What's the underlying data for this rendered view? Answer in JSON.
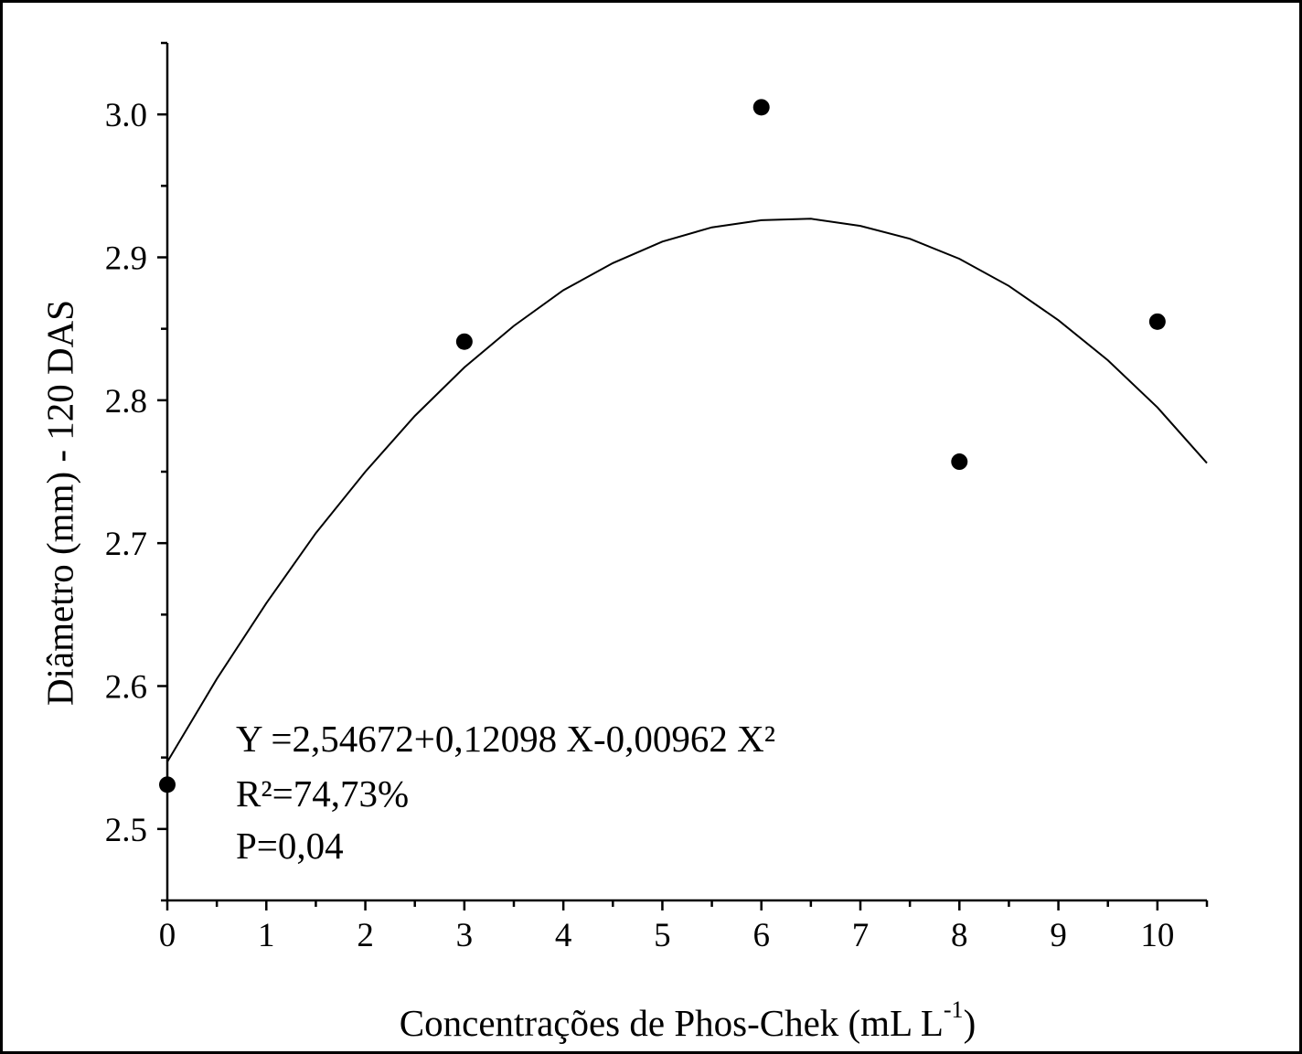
{
  "chart_data": {
    "type": "scatter",
    "y_label": "Diâmetro (mm) - 120 DAS",
    "x_label": {
      "text": "Concentrações de Phos-Chek (mL L",
      "superscript": "-1",
      "close": ")"
    },
    "annotations": [
      "Y =2,54672+0,12098 X-0,00962 X²",
      "R²=74,73%",
      "P=0,04"
    ],
    "xlim": [
      0,
      10.5
    ],
    "ylim": [
      2.45,
      3.05
    ],
    "xticks": [
      0,
      1,
      2,
      3,
      4,
      5,
      6,
      7,
      8,
      9,
      10
    ],
    "xminorticks": [
      0.5,
      1.5,
      2.5,
      3.5,
      4.5,
      5.5,
      6.5,
      7.5,
      8.5,
      9.5,
      10.5
    ],
    "yticks": [
      2.5,
      2.6,
      2.7,
      2.8,
      2.9,
      {
        "value": 3.0,
        "label": "3.0"
      }
    ],
    "yminorticks": [
      2.45,
      2.55,
      2.65,
      2.75,
      2.85,
      2.95,
      3.05
    ],
    "series": [
      {
        "type": "scatter",
        "color": "#000000",
        "x": [
          0,
          3,
          6,
          8,
          10
        ],
        "values": [
          2.531,
          2.841,
          3.005,
          2.757,
          2.855
        ]
      },
      {
        "type": "line",
        "color": "#000000",
        "x": [
          0,
          0.5,
          1,
          1.5,
          2,
          2.5,
          3,
          3.5,
          4,
          4.5,
          5,
          5.5,
          6,
          6.5,
          7,
          7.5,
          8,
          8.5,
          9,
          9.5,
          10,
          10.5
        ],
        "values": [
          2.547,
          2.605,
          2.658,
          2.707,
          2.75,
          2.789,
          2.823,
          2.852,
          2.877,
          2.896,
          2.911,
          2.921,
          2.926,
          2.927,
          2.922,
          2.913,
          2.899,
          2.88,
          2.856,
          2.828,
          2.795,
          2.756
        ]
      }
    ]
  }
}
